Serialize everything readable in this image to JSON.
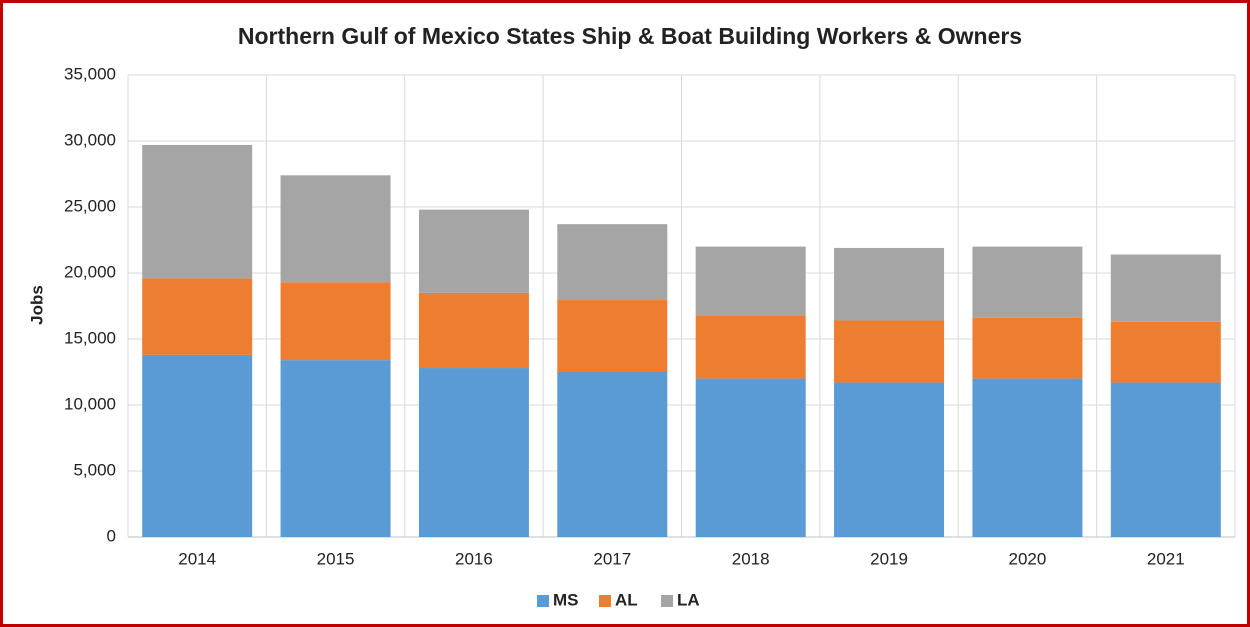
{
  "chart_data": {
    "type": "stacked_bar",
    "title": "Northern Gulf of Mexico States Ship & Boat Building Workers & Owners",
    "y_label": "Jobs",
    "categories": [
      "2014",
      "2015",
      "2016",
      "2017",
      "2018",
      "2019",
      "2020",
      "2021"
    ],
    "series": [
      {
        "name": "MS",
        "color": "#5b9bd5",
        "values": [
          13800,
          13400,
          12800,
          12500,
          12000,
          11700,
          12000,
          11700
        ]
      },
      {
        "name": "AL",
        "color": "#ed7d31",
        "values": [
          5800,
          5900,
          5700,
          5450,
          4800,
          4700,
          4600,
          4600
        ]
      },
      {
        "name": "LA",
        "color": "#a5a5a5",
        "values": [
          10100,
          8100,
          6300,
          5750,
          5200,
          5500,
          5400,
          5100
        ]
      }
    ],
    "ylim": [
      0,
      35000
    ],
    "yticks": [
      0,
      {
        "value": 5000,
        "label": "5,000"
      },
      {
        "value": 10000,
        "label": "10,000"
      },
      {
        "value": 15000,
        "label": "15,000"
      },
      {
        "value": 20000,
        "label": "20,000"
      },
      {
        "value": 25000,
        "label": "25,000"
      },
      {
        "value": 30000,
        "label": "30,000"
      },
      {
        "value": 35000,
        "label": "35,000"
      }
    ],
    "grid": true,
    "legend": "bottom"
  }
}
